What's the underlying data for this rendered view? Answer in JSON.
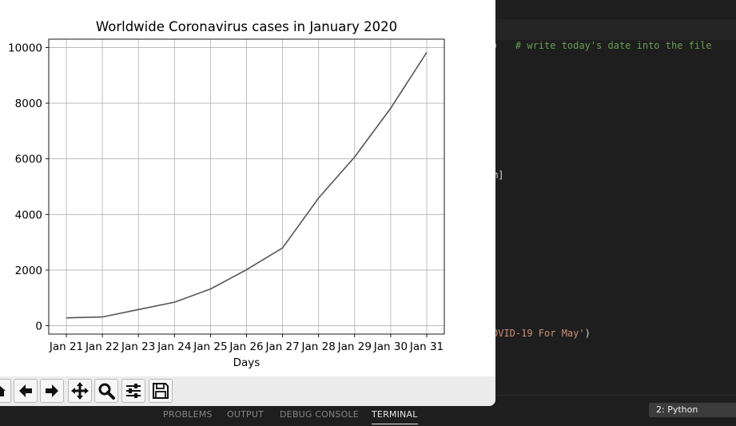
{
  "editor": {
    "line_comment_prefix": ")   ",
    "line_comment": "# write today's date into the file",
    "line_mid": "m]",
    "line_string": "OVID-19 For May'",
    "line_string_close": ")"
  },
  "panel": {
    "tabs": [
      {
        "label": "PROBLEMS"
      },
      {
        "label": "OUTPUT"
      },
      {
        "label": "DEBUG CONSOLE"
      },
      {
        "label": "TERMINAL",
        "active": true
      }
    ],
    "terminal_select": "2: Python"
  },
  "toolbar": {
    "buttons": [
      {
        "icon": "home-icon"
      },
      {
        "icon": "back-arrow-icon"
      },
      {
        "icon": "forward-arrow-icon"
      },
      {
        "icon": "pan-move-icon"
      },
      {
        "icon": "zoom-magnifier-icon"
      },
      {
        "icon": "configure-subplots-icon"
      },
      {
        "icon": "save-figure-icon"
      }
    ]
  },
  "chart_data": {
    "type": "line",
    "title": "Worldwide Coronavirus cases in January 2020",
    "xlabel": "Days",
    "ylabel": "",
    "categories": [
      "Jan 21",
      "Jan 22",
      "Jan 23",
      "Jan 24",
      "Jan 25",
      "Jan 26",
      "Jan 27",
      "Jan 28",
      "Jan 29",
      "Jan 30",
      "Jan 31"
    ],
    "values": [
      282,
      314,
      581,
      846,
      1320,
      2014,
      2798,
      4593,
      6065,
      7818,
      9826
    ],
    "y_ticks": [
      0,
      2000,
      4000,
      6000,
      8000,
      10000
    ],
    "ylim": [
      -300,
      10300
    ],
    "grid": true,
    "line_color": "#555555"
  }
}
